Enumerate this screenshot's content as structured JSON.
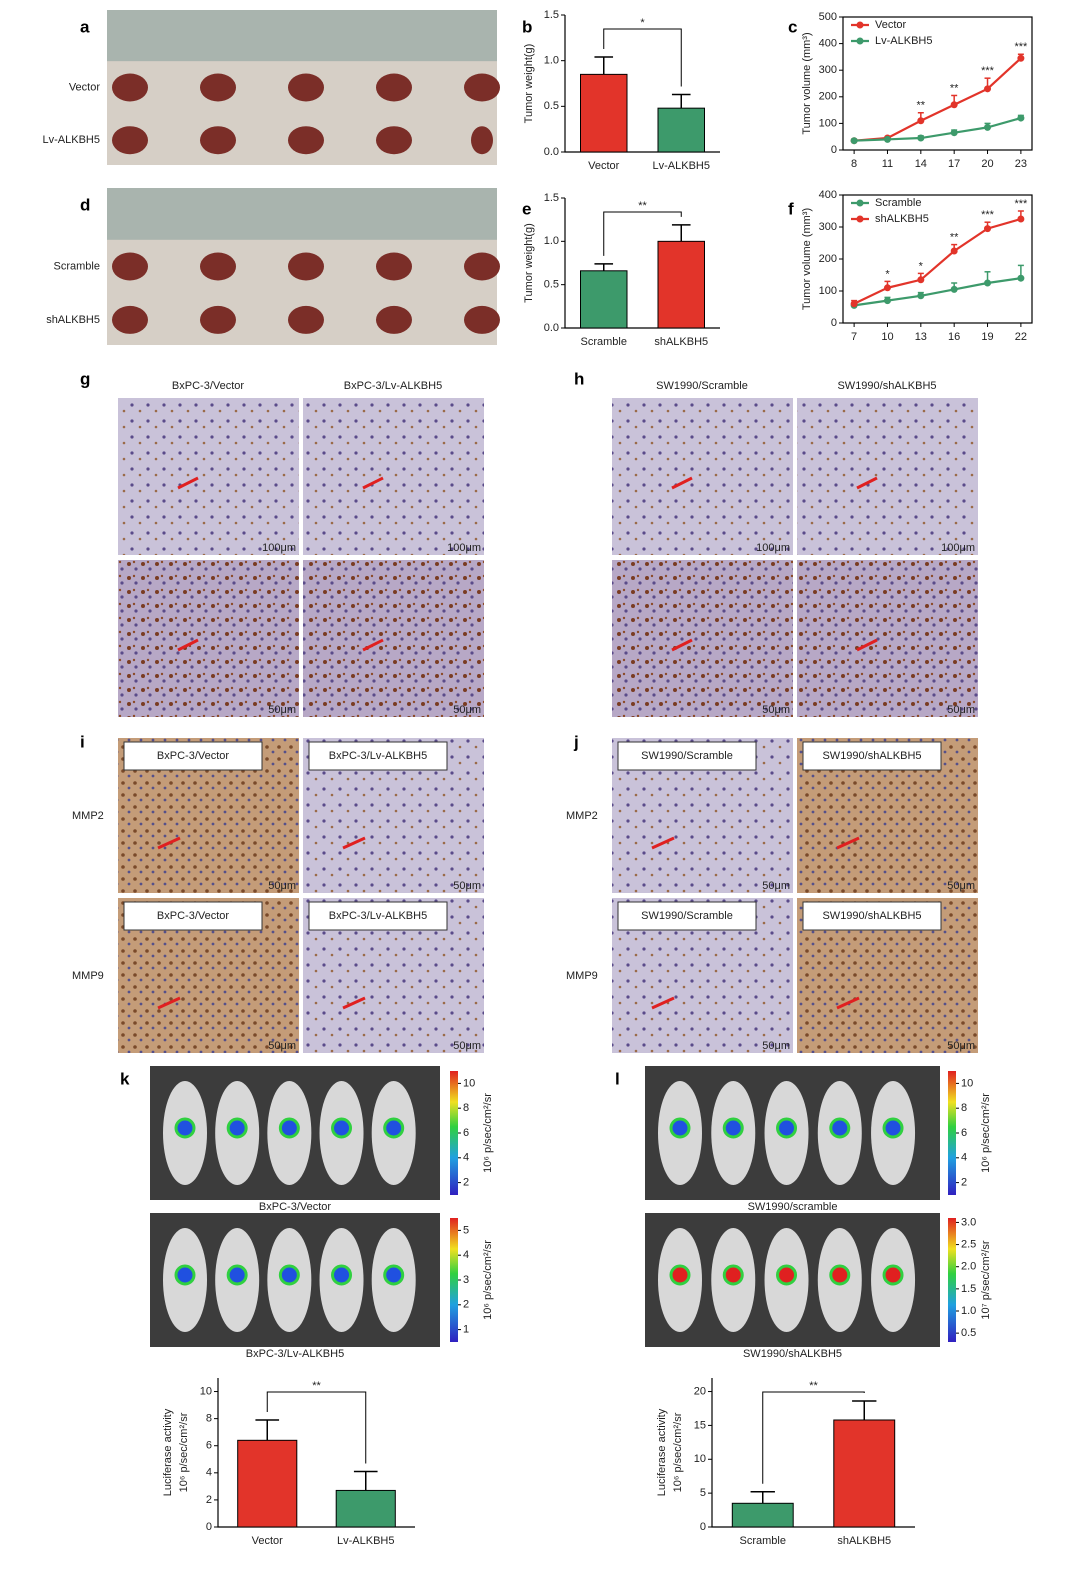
{
  "photos": [
    {
      "letter": "a",
      "rows": [
        "Vector",
        "Lv-ALKBH5"
      ]
    },
    {
      "letter": "d",
      "rows": [
        "Scramble",
        "shALKBH5"
      ]
    }
  ],
  "ihc": [
    {
      "letter": "g",
      "columns": [
        "BxPC-3/Vector",
        "BxPC-3/Lv-ALKBH5"
      ],
      "scale_bars": [
        "100μm",
        "50μm"
      ]
    },
    {
      "letter": "h",
      "columns": [
        "SW1990/Scramble",
        "SW1990/shALKBH5"
      ],
      "scale_bars": [
        "100μm",
        "50μm"
      ]
    }
  ],
  "stain": [
    {
      "letter": "i",
      "rows": [
        "MMP2",
        "MMP9"
      ],
      "tags": [
        "BxPC-3/Vector",
        "BxPC-3/Lv-ALKBH5"
      ],
      "scale_bar": "50μm"
    },
    {
      "letter": "j",
      "rows": [
        "MMP2",
        "MMP9"
      ],
      "tags": [
        "SW1990/Scramble",
        "SW1990/shALKBH5"
      ],
      "scale_bar": "50μm"
    }
  ],
  "imaging": [
    {
      "letter": "k",
      "captions": [
        "BxPC-3/Vector",
        "BxPC-3/Lv-ALKBH5"
      ],
      "colorbars": [
        {
          "range": [
            1,
            11
          ],
          "ticks": [
            2,
            4,
            6,
            8,
            10
          ],
          "unit": "10⁶ p/sec/cm²/sr"
        },
        {
          "range": [
            0.5,
            5.5
          ],
          "ticks": [
            1,
            2,
            3,
            4,
            5
          ],
          "unit": "10⁶ p/sec/cm²/sr"
        }
      ]
    },
    {
      "letter": "l",
      "captions": [
        "SW1990/scramble",
        "SW1990/shALKBH5"
      ],
      "colorbars": [
        {
          "range": [
            1,
            11
          ],
          "ticks": [
            2,
            4,
            6,
            8,
            10
          ],
          "unit": "10⁶ p/sec/cm²/sr"
        },
        {
          "range": [
            0.3,
            3.1
          ],
          "ticks": [
            0.5,
            {
              "value": 1,
              "label": "1.0"
            },
            1.5,
            {
              "value": 2,
              "label": "2.0"
            },
            2.5,
            {
              "value": 3,
              "label": "3.0"
            }
          ],
          "unit": "10⁷ p/sec/cm²/sr"
        }
      ]
    }
  ],
  "chart_data": [
    {
      "type": "bar",
      "panel": "b",
      "ylabel": "Tumor weight(g)",
      "categories": [
        "Vector",
        "Lv-ALKBH5"
      ],
      "values": [
        0.85,
        0.48
      ],
      "errors": [
        0.19,
        0.15
      ],
      "colors": [
        "#e2342a",
        "#3d9a6b"
      ],
      "ylim": [
        0,
        1.5
      ],
      "yticks": [
        {
          "value": 0,
          "label": "0.0"
        },
        0.5,
        {
          "value": 1,
          "label": "1.0"
        },
        1.5
      ],
      "significance": "*"
    },
    {
      "type": "line",
      "panel": "c",
      "ylabel": "Tumor volume (mm³)",
      "x": [
        8,
        11,
        14,
        17,
        20,
        23
      ],
      "xlim": [
        7,
        24
      ],
      "xticks": [
        8,
        11,
        14,
        17,
        20,
        23
      ],
      "ylim": [
        0,
        500
      ],
      "yticks": [
        0,
        100,
        200,
        300,
        400,
        500
      ],
      "series": [
        {
          "name": "Vector",
          "color": "#e2342a",
          "values": [
            35,
            45,
            110,
            170,
            230,
            345
          ],
          "errors": [
            5,
            5,
            30,
            35,
            40,
            15
          ]
        },
        {
          "name": "Lv-ALKBH5",
          "color": "#3d9a6b",
          "values": [
            35,
            40,
            45,
            65,
            85,
            120
          ],
          "errors": [
            5,
            5,
            8,
            10,
            15,
            10
          ]
        }
      ],
      "annotations": [
        {
          "x": 14,
          "text": "**"
        },
        {
          "x": 17,
          "text": "**"
        },
        {
          "x": 20,
          "text": "***"
        },
        {
          "x": 23,
          "text": "***"
        }
      ]
    },
    {
      "type": "bar",
      "panel": "e",
      "ylabel": "Tumor weight(g)",
      "categories": [
        "Scramble",
        "shALKBH5"
      ],
      "values": [
        0.66,
        1.0
      ],
      "errors": [
        0.08,
        0.19
      ],
      "colors": [
        "#3d9a6b",
        "#e2342a"
      ],
      "ylim": [
        0,
        1.5
      ],
      "yticks": [
        {
          "value": 0,
          "label": "0.0"
        },
        0.5,
        {
          "value": 1,
          "label": "1.0"
        },
        1.5
      ],
      "significance": "**"
    },
    {
      "type": "line",
      "panel": "f",
      "ylabel": "Tumor volume (mm³)",
      "x": [
        7,
        10,
        13,
        16,
        19,
        22
      ],
      "xlim": [
        6,
        23
      ],
      "xticks": [
        7,
        10,
        13,
        16,
        19,
        22
      ],
      "ylim": [
        0,
        400
      ],
      "yticks": [
        0,
        100,
        200,
        300,
        400
      ],
      "series": [
        {
          "name": "Scramble",
          "color": "#3d9a6b",
          "values": [
            55,
            70,
            85,
            105,
            125,
            140
          ],
          "errors": [
            8,
            10,
            10,
            20,
            35,
            40
          ]
        },
        {
          "name": "shALKBH5",
          "color": "#e2342a",
          "values": [
            60,
            110,
            135,
            225,
            295,
            325
          ],
          "errors": [
            10,
            20,
            20,
            20,
            20,
            25
          ]
        }
      ],
      "annotations": [
        {
          "x": 10,
          "text": "*"
        },
        {
          "x": 13,
          "text": "*"
        },
        {
          "x": 16,
          "text": "**"
        },
        {
          "x": 19,
          "text": "***"
        },
        {
          "x": 22,
          "text": "***"
        }
      ]
    },
    {
      "type": "bar",
      "ylabel": "Luciferase activity",
      "yunit": "10⁶ p/sec/cm²/sr",
      "categories": [
        "Vector",
        "Lv-ALKBH5"
      ],
      "values": [
        6.4,
        2.7
      ],
      "errors": [
        1.5,
        1.4
      ],
      "colors": [
        "#e2342a",
        "#3d9a6b"
      ],
      "ylim": [
        0,
        11
      ],
      "yticks": [
        0,
        2,
        4,
        6,
        8,
        10
      ],
      "significance": "**"
    },
    {
      "type": "bar",
      "ylabel": "Luciferase activity",
      "yunit": "10⁶ p/sec/cm²/sr",
      "categories": [
        "Scramble",
        "shALKBH5"
      ],
      "values": [
        3.5,
        15.8
      ],
      "errors": [
        1.7,
        2.8
      ],
      "colors": [
        "#3d9a6b",
        "#e2342a"
      ],
      "ylim": [
        0,
        22
      ],
      "yticks": [
        0,
        5,
        10,
        15,
        20
      ],
      "significance": "**"
    }
  ]
}
